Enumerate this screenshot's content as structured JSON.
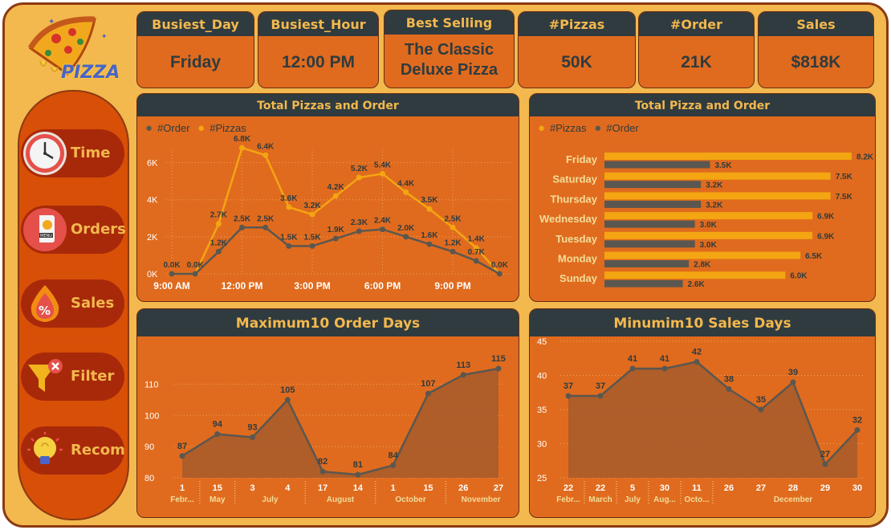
{
  "logo": {
    "text": "PIZZA"
  },
  "nav": [
    {
      "label": "Time",
      "icon": "clock-icon"
    },
    {
      "label": "Orders",
      "icon": "menu-card-icon"
    },
    {
      "label": "Sales",
      "icon": "percent-flame-icon"
    },
    {
      "label": "Filter",
      "icon": "filter-clear-icon"
    },
    {
      "label": "Recom",
      "icon": "lightbulb-icon"
    }
  ],
  "kpis": [
    {
      "title": "Busiest_Day",
      "value": "Friday"
    },
    {
      "title": "Busiest_Hour",
      "value": "12:00 PM"
    },
    {
      "title": "Best Selling",
      "value": "The Classic Deluxe Pizza"
    },
    {
      "title": "#Pizzas",
      "value": "50K"
    },
    {
      "title": "#Order",
      "value": "21K"
    },
    {
      "title": "Sales",
      "value": "$818K"
    }
  ],
  "colors": {
    "pizzas": "#f3a512",
    "orders": "#5a5750",
    "panel": "#e06b1e",
    "header": "#2f3b3f",
    "accent": "#f3b84e"
  },
  "chart_data": [
    {
      "type": "line",
      "title": "Total Pizzas and Order",
      "legend": [
        "#Order",
        "#Pizzas"
      ],
      "legend_position": "top-left",
      "x_hours": [
        9,
        10,
        11,
        12,
        13,
        14,
        15,
        16,
        17,
        18,
        19,
        20,
        21,
        22,
        23
      ],
      "x_tick_labels": [
        "9:00 AM",
        "12:00 PM",
        "3:00 PM",
        "6:00 PM",
        "9:00 PM"
      ],
      "y_tick_labels": [
        "0K",
        "2K",
        "4K",
        "6K"
      ],
      "ylim": [
        0,
        7000
      ],
      "series": [
        {
          "name": "#Pizzas",
          "values": [
            0,
            0,
            2700,
            6800,
            6400,
            3600,
            3200,
            4200,
            5200,
            5400,
            4400,
            3500,
            2500,
            1400,
            0
          ],
          "labels": [
            "0.0K",
            "0.0K",
            "2.7K",
            "6.8K",
            "6.4K",
            "3.6K",
            "3.2K",
            "4.2K",
            "5.2K",
            "5.4K",
            "4.4K",
            "3.5K",
            "2.5K",
            "1.4K",
            "0.0K"
          ]
        },
        {
          "name": "#Order",
          "values": [
            0,
            0,
            1200,
            2500,
            2500,
            1500,
            1500,
            1900,
            2300,
            2400,
            2000,
            1600,
            1200,
            700,
            0
          ],
          "labels": [
            "",
            "",
            "1.2K",
            "2.5K",
            "2.5K",
            "1.5K",
            "1.5K",
            "1.9K",
            "2.3K",
            "2.4K",
            "2.0K",
            "1.6K",
            "1.2K",
            "0.7K",
            ""
          ]
        }
      ]
    },
    {
      "type": "bar",
      "title": "Total Pizza and Order",
      "orientation": "horizontal",
      "legend": [
        "#Pizzas",
        "#Order"
      ],
      "legend_position": "top-left",
      "categories": [
        "Friday",
        "Saturday",
        "Thursday",
        "Wednesday",
        "Tuesday",
        "Monday",
        "Sunday"
      ],
      "series": [
        {
          "name": "#Pizzas",
          "values": [
            8200,
            7500,
            7500,
            6900,
            6900,
            6500,
            6000
          ],
          "labels": [
            "8.2K",
            "7.5K",
            "7.5K",
            "6.9K",
            "6.9K",
            "6.5K",
            "6.0K"
          ]
        },
        {
          "name": "#Order",
          "values": [
            3500,
            3200,
            3200,
            3000,
            3000,
            2800,
            2600
          ],
          "labels": [
            "3.5K",
            "3.2K",
            "3.2K",
            "3.0K",
            "3.0K",
            "2.8K",
            "2.6K"
          ]
        }
      ]
    },
    {
      "type": "area",
      "title": "Maximum10 Order Days",
      "day_labels": [
        "1",
        "15",
        "3",
        "4",
        "17",
        "14",
        "1",
        "15",
        "26",
        "27"
      ],
      "month_labels": [
        "Febr...",
        "May",
        "July",
        "August",
        "October",
        "November"
      ],
      "month_spans": [
        1,
        1,
        2,
        2,
        2,
        2
      ],
      "values": [
        87,
        94,
        93,
        105,
        82,
        81,
        84,
        107,
        113,
        115
      ],
      "y_tick_labels": [
        "80",
        "90",
        "100",
        "110"
      ],
      "ylim": [
        80,
        115
      ]
    },
    {
      "type": "area",
      "title": "Minumim10 Sales Days",
      "day_labels": [
        "22",
        "22",
        "5",
        "30",
        "11",
        "26",
        "27",
        "28",
        "29",
        "30"
      ],
      "month_labels": [
        "Febr...",
        "March",
        "July",
        "Aug...",
        "Octo...",
        "December"
      ],
      "month_spans": [
        1,
        1,
        1,
        1,
        1,
        5
      ],
      "values": [
        37,
        37,
        41,
        41,
        42,
        38,
        35,
        39,
        27,
        32
      ],
      "y_tick_labels": [
        "25",
        "30",
        "35",
        "40",
        "45"
      ],
      "ylim": [
        25,
        45
      ]
    }
  ]
}
